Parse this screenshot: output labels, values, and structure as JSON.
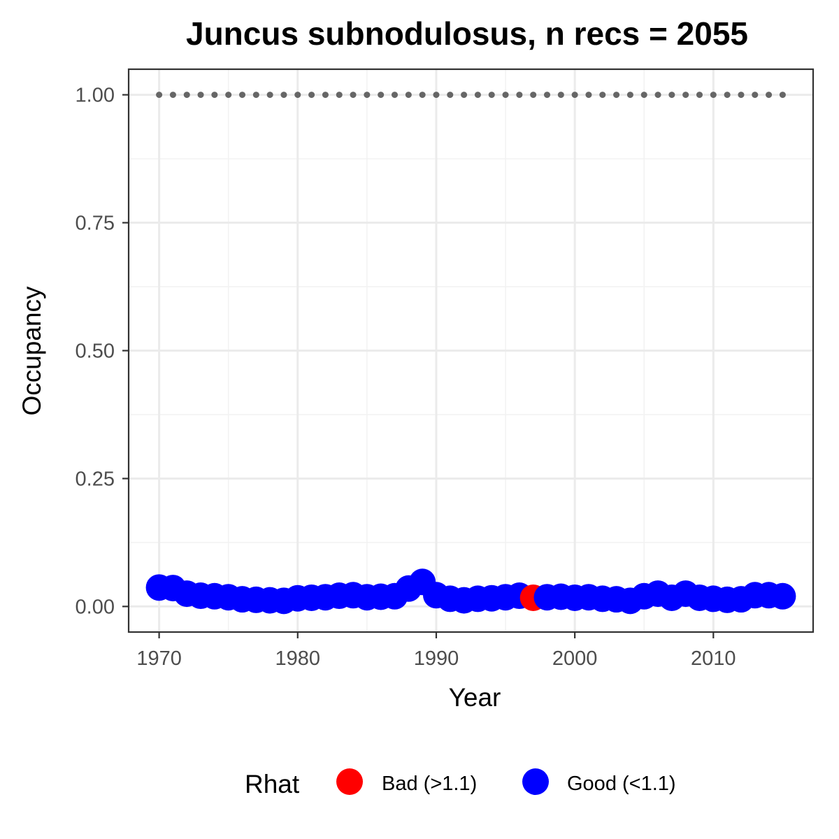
{
  "chart_data": {
    "type": "scatter",
    "title": "Juncus subnodulosus, n recs = 2055",
    "xlabel": "Year",
    "ylabel": "Occupancy",
    "xlim": [
      1967.8,
      2017.2
    ],
    "ylim": [
      -0.05,
      1.05
    ],
    "x_ticks": [
      1970,
      1980,
      1990,
      2000,
      2010
    ],
    "x_tick_labels": [
      "1970",
      "1980",
      "1990",
      "2000",
      "2010"
    ],
    "y_ticks": [
      0,
      0.25,
      0.5,
      0.75,
      1.0
    ],
    "y_tick_labels": [
      "0.00",
      "0.25",
      "0.50",
      "0.75",
      "1.00"
    ],
    "grid": true,
    "reference_line": {
      "y": 1.0,
      "style": "dotted",
      "color": "#666666",
      "x_start": 1970,
      "x_end": 2015
    },
    "series": [
      {
        "x": [
          1970,
          1971,
          1972,
          1973,
          1974,
          1975,
          1976,
          1977,
          1978,
          1979,
          1980,
          1981,
          1982,
          1983,
          1984,
          1985,
          1986,
          1987,
          1988,
          1989,
          1990,
          1991,
          1992,
          1993,
          1994,
          1995,
          1996,
          1997,
          1998,
          1999,
          2000,
          2001,
          2002,
          2003,
          2004,
          2005,
          2006,
          2007,
          2008,
          2009,
          2010,
          2011,
          2012,
          2013,
          2014,
          2015
        ],
        "y": [
          0.037,
          0.036,
          0.025,
          0.021,
          0.02,
          0.018,
          0.014,
          0.013,
          0.012,
          0.011,
          0.016,
          0.017,
          0.018,
          0.021,
          0.022,
          0.018,
          0.019,
          0.02,
          0.035,
          0.048,
          0.022,
          0.015,
          0.012,
          0.015,
          0.016,
          0.018,
          0.021,
          0.017,
          0.018,
          0.019,
          0.017,
          0.018,
          0.015,
          0.014,
          0.011,
          0.02,
          0.025,
          0.017,
          0.025,
          0.017,
          0.015,
          0.013,
          0.014,
          0.022,
          0.022,
          0.02
        ],
        "rhat": [
          "Good",
          "Good",
          "Good",
          "Good",
          "Good",
          "Good",
          "Good",
          "Good",
          "Good",
          "Good",
          "Good",
          "Good",
          "Good",
          "Good",
          "Good",
          "Good",
          "Good",
          "Good",
          "Good",
          "Good",
          "Good",
          "Good",
          "Good",
          "Good",
          "Good",
          "Good",
          "Good",
          "Bad",
          "Good",
          "Good",
          "Good",
          "Good",
          "Good",
          "Good",
          "Good",
          "Good",
          "Good",
          "Good",
          "Good",
          "Good",
          "Good",
          "Good",
          "Good",
          "Good",
          "Good",
          "Good"
        ]
      }
    ],
    "legend": {
      "title": "Rhat",
      "position": "bottom",
      "entries": [
        {
          "key": "Bad",
          "label": "Bad (>1.1)",
          "color": "#ff0000"
        },
        {
          "key": "Good",
          "label": "Good (<1.1)",
          "color": "#0000ff"
        }
      ]
    }
  }
}
